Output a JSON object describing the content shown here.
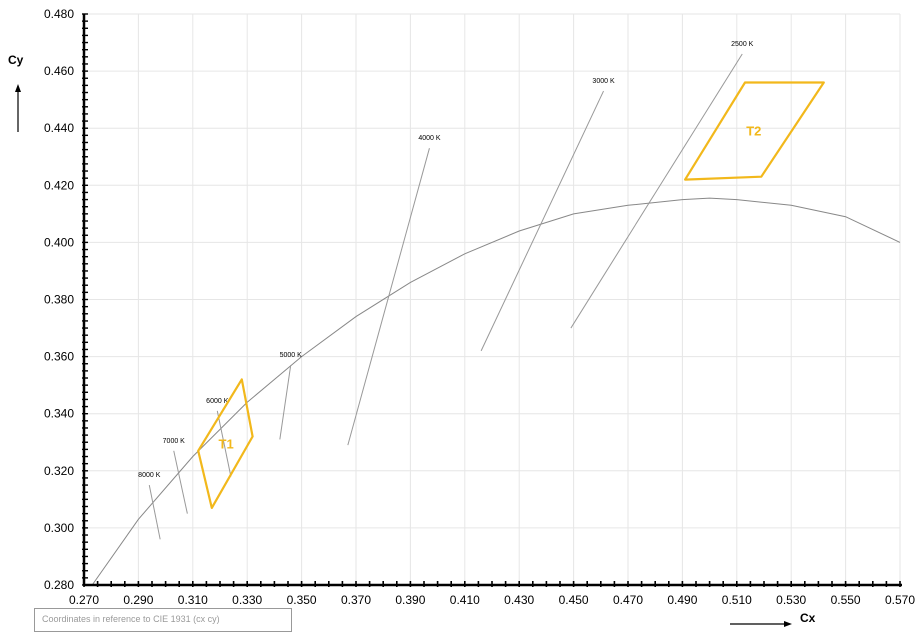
{
  "chart_data": {
    "type": "scatter",
    "xlabel": "Cx",
    "ylabel": "Cy",
    "xlim": [
      0.27,
      0.57
    ],
    "ylim": [
      0.28,
      0.48
    ],
    "x_ticks": [
      "0.270",
      "0.290",
      "0.310",
      "0.330",
      "0.350",
      "0.370",
      "0.390",
      "0.410",
      "0.430",
      "0.450",
      "0.470",
      "0.490",
      "0.510",
      "0.530",
      "0.550",
      "0.570"
    ],
    "y_ticks": [
      "0.280",
      "0.300",
      "0.320",
      "0.340",
      "0.360",
      "0.380",
      "0.400",
      "0.420",
      "0.440",
      "0.460",
      "0.480"
    ],
    "grid": true,
    "planckian_locus": {
      "x": [
        0.273,
        0.29,
        0.31,
        0.33,
        0.35,
        0.37,
        0.39,
        0.41,
        0.43,
        0.45,
        0.47,
        0.49,
        0.5,
        0.51,
        0.53,
        0.55,
        0.57
      ],
      "y": [
        0.28,
        0.303,
        0.325,
        0.344,
        0.36,
        0.374,
        0.386,
        0.396,
        0.404,
        0.41,
        0.413,
        0.415,
        0.4155,
        0.415,
        0.413,
        0.409,
        0.4
      ]
    },
    "isotemperature_lines": [
      {
        "label": "8000 K",
        "x": [
          0.294,
          0.298
        ],
        "y": [
          0.315,
          0.296
        ]
      },
      {
        "label": "7000 K",
        "x": [
          0.303,
          0.308
        ],
        "y": [
          0.327,
          0.305
        ]
      },
      {
        "label": "6000 K",
        "x": [
          0.319,
          0.324
        ],
        "y": [
          0.341,
          0.318
        ]
      },
      {
        "label": "5000 K",
        "x": [
          0.346,
          0.342
        ],
        "y": [
          0.357,
          0.331
        ]
      },
      {
        "label": "4000 K",
        "x": [
          0.397,
          0.367
        ],
        "y": [
          0.433,
          0.329
        ]
      },
      {
        "label": "3000 K",
        "x": [
          0.461,
          0.416
        ],
        "y": [
          0.453,
          0.362
        ]
      },
      {
        "label": "2500 K",
        "x": [
          0.512,
          0.449
        ],
        "y": [
          0.466,
          0.37
        ]
      }
    ],
    "zones": [
      {
        "name": "T1",
        "color": "#f2b81b",
        "x": [
          0.328,
          0.332,
          0.317,
          0.312
        ],
        "y": [
          0.352,
          0.332,
          0.307,
          0.327
        ]
      },
      {
        "name": "T2",
        "color": "#f2b81b",
        "x": [
          0.513,
          0.542,
          0.519,
          0.491
        ],
        "y": [
          0.456,
          0.456,
          0.423,
          0.422
        ]
      }
    ],
    "colors": {
      "locus": "#888888",
      "isotemp": "#999999",
      "grid": "#e6e6e6"
    }
  },
  "note": "Coordinates in reference to CIE 1931 (cx cy)"
}
